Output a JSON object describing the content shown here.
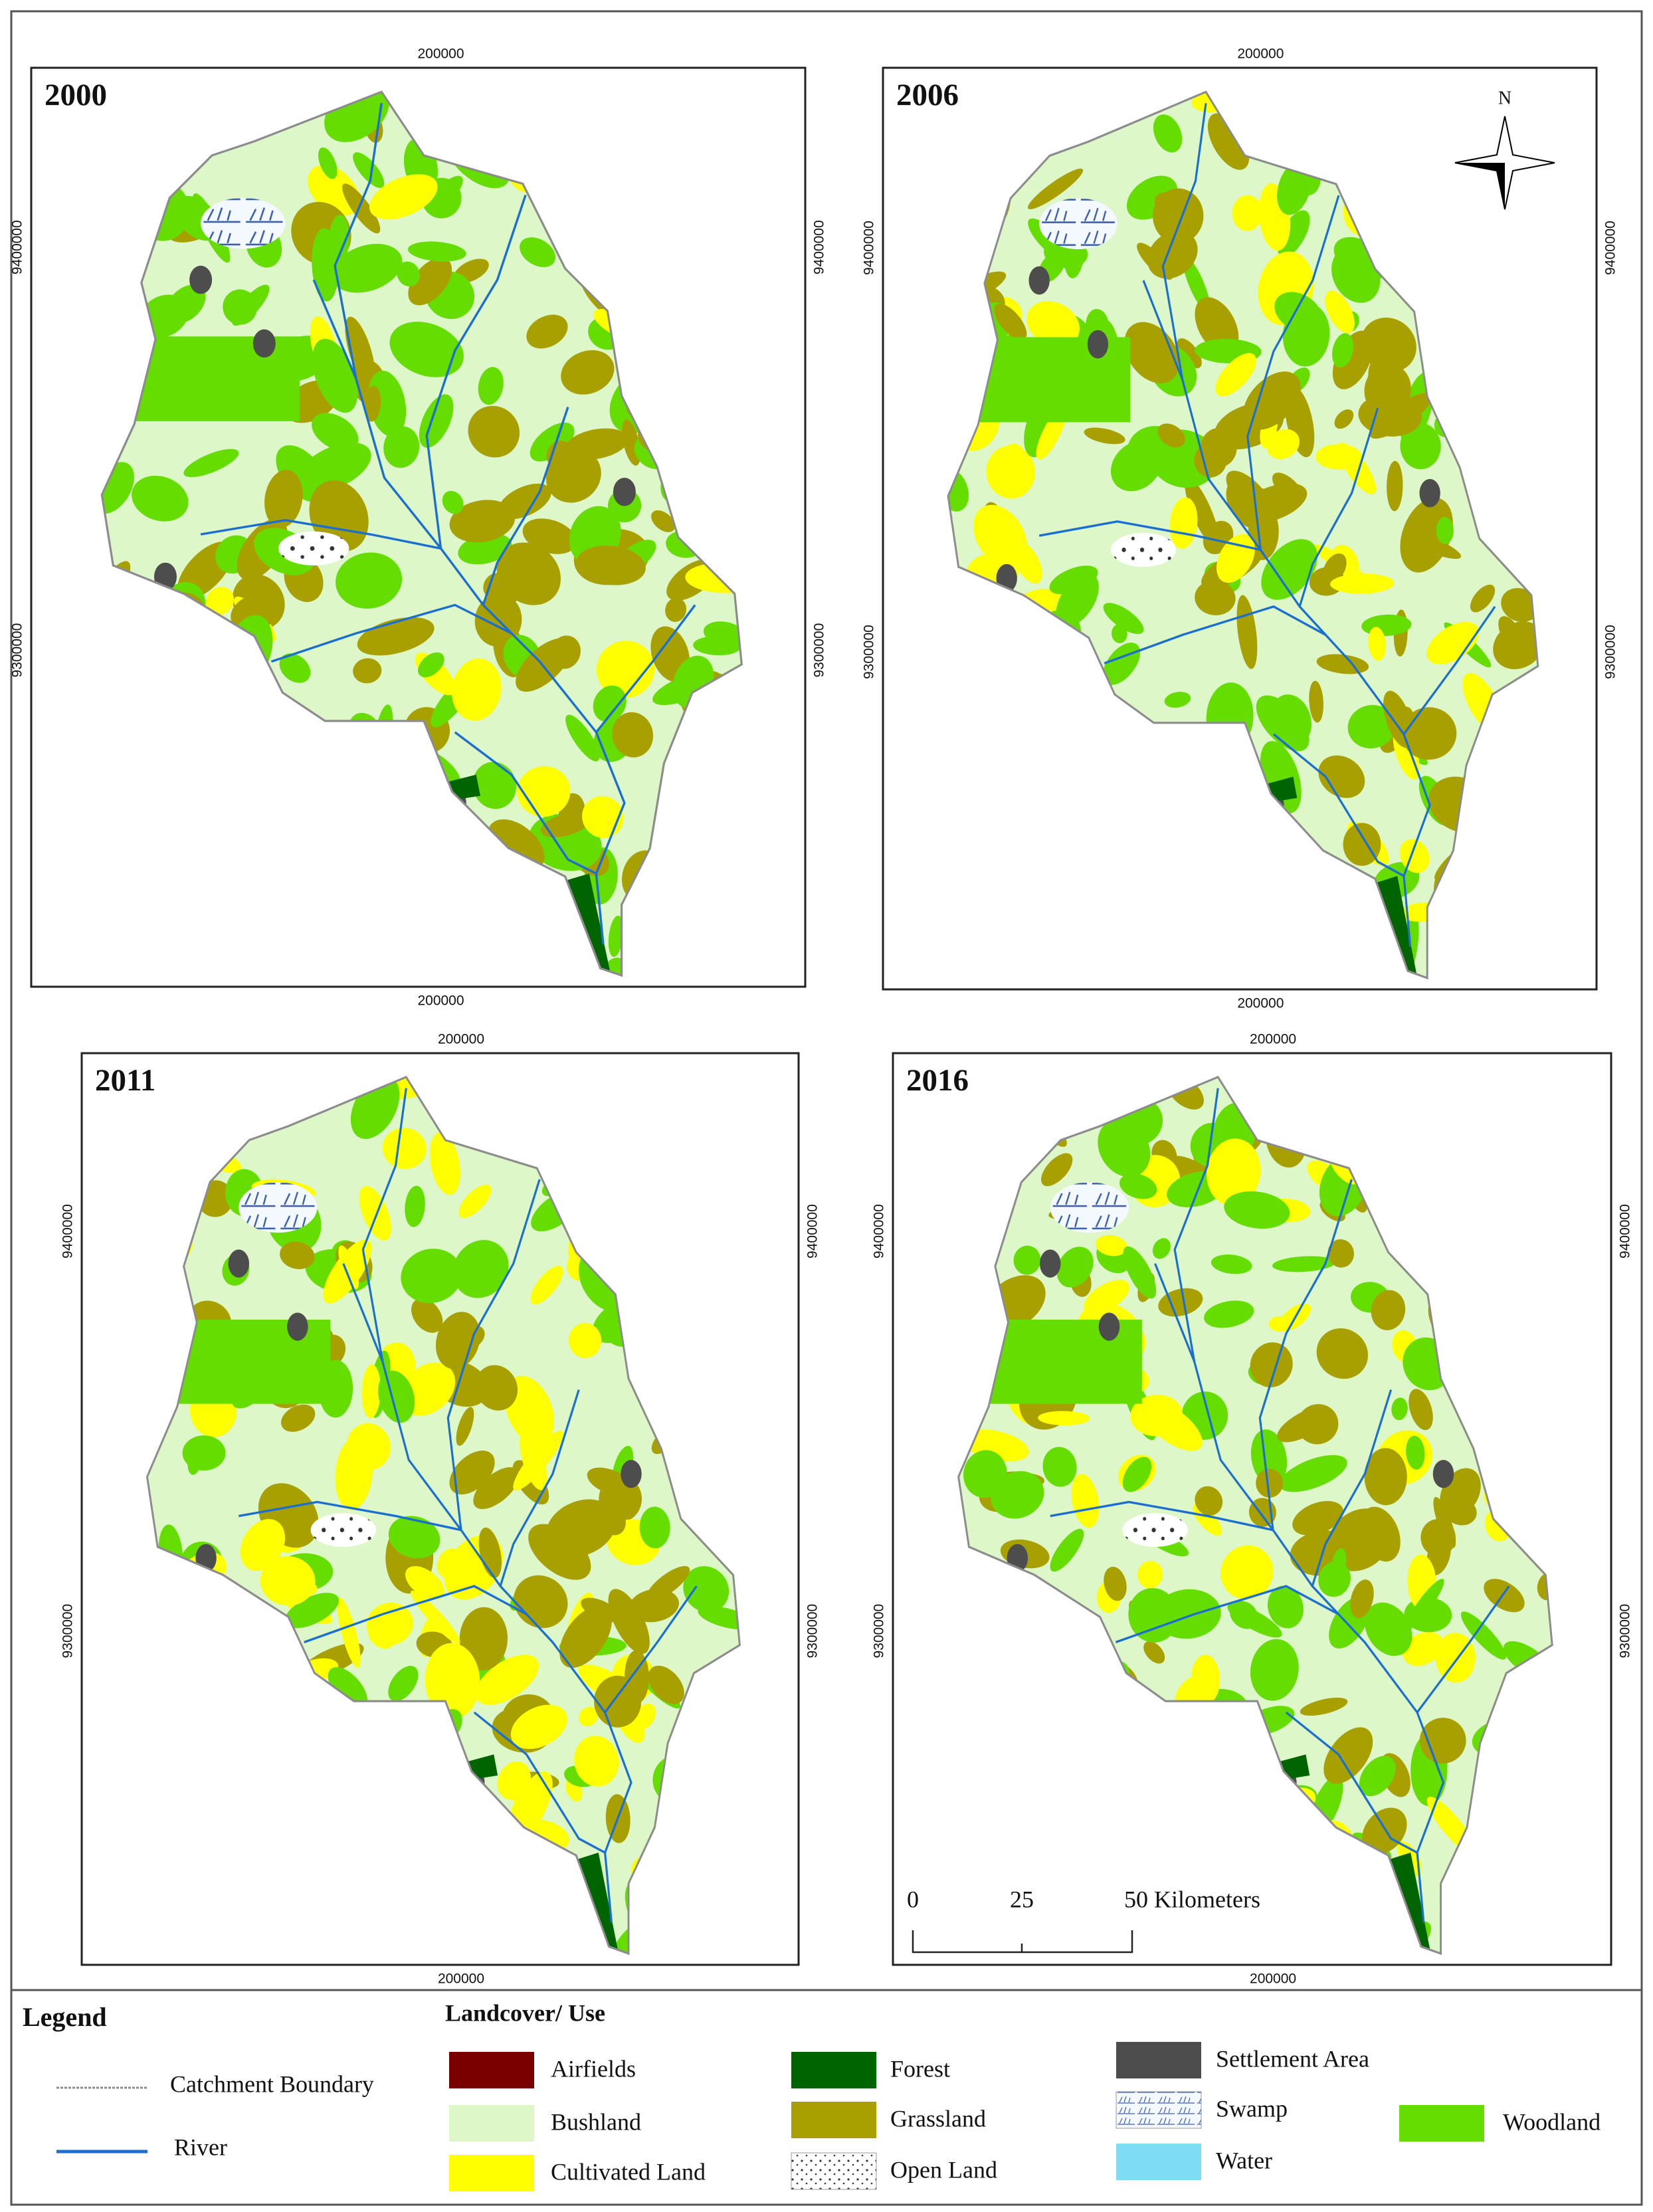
{
  "panels": [
    {
      "title": "2000"
    },
    {
      "title": "2006"
    },
    {
      "title": "2011"
    },
    {
      "title": "2016"
    }
  ],
  "grid_labels": {
    "easting": "200000",
    "northing_upper": "9400000",
    "northing_lower": "9300000"
  },
  "north_arrow": "N",
  "scale_bar": {
    "labels": [
      "0",
      "25",
      "50 Kilometers"
    ]
  },
  "legend": {
    "title": "Legend",
    "lines": [
      {
        "label": "Catchment Boundary",
        "color": "#8c8c8c"
      },
      {
        "label": "River",
        "color": "#1a6fd0"
      }
    ],
    "landcover_title": "Landcover/ Use",
    "classes": [
      {
        "label": "Airfields",
        "color": "#7a0000"
      },
      {
        "label": "Bushland",
        "color": "#ddf7c8"
      },
      {
        "label": "Cultivated Land",
        "color": "#ffff00"
      },
      {
        "label": "Forest",
        "color": "#006400"
      },
      {
        "label": "Grassland",
        "color": "#a8a000"
      },
      {
        "label": "Open Land",
        "color": "#ffffff"
      },
      {
        "label": "Settlement Area",
        "color": "#4d4d4d"
      },
      {
        "label": "Swamp",
        "color": "#f4f8ff"
      },
      {
        "label": "Water",
        "color": "#7fdcf5"
      },
      {
        "label": "Woodland",
        "color": "#66dd00"
      }
    ]
  }
}
